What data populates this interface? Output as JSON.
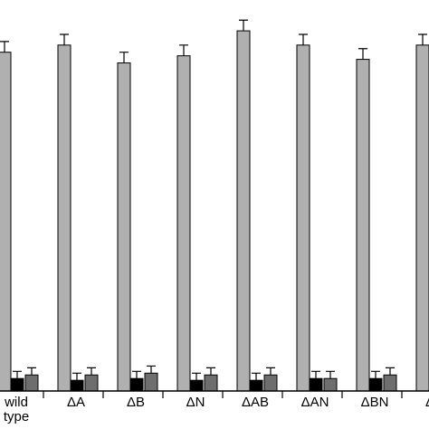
{
  "chart_data": {
    "type": "bar",
    "categories": [
      {
        "label": [
          "wild",
          "type"
        ]
      },
      {
        "label": [
          "ΔA"
        ]
      },
      {
        "label": [
          "ΔB"
        ]
      },
      {
        "label": [
          "ΔN"
        ]
      },
      {
        "label": [
          "ΔAB"
        ]
      },
      {
        "label": [
          "ΔAN"
        ]
      },
      {
        "label": [
          "ΔBN"
        ]
      },
      {
        "label": [
          "ΔA"
        ]
      }
    ],
    "series": [
      {
        "color": "#b0b0b0",
        "values": [
          95,
          97,
          92,
          94,
          101,
          97,
          93,
          97
        ],
        "errors": [
          3,
          3,
          3,
          3,
          3,
          3,
          3,
          3
        ]
      },
      {
        "color": "#000000",
        "values": [
          3.5,
          3.0,
          3.5,
          3.0,
          3.0,
          3.5,
          3.5,
          3.0
        ],
        "errors": [
          2,
          2,
          2,
          2,
          2,
          2,
          2,
          2
        ]
      },
      {
        "color": "#6e6e6e",
        "values": [
          4.5,
          4.5,
          5.0,
          4.5,
          4.5,
          3.5,
          4.5,
          4.0
        ],
        "errors": [
          2,
          2,
          2,
          2,
          2,
          2,
          2,
          2
        ]
      }
    ],
    "ylim": [
      0,
      110
    ],
    "grid": false
  }
}
